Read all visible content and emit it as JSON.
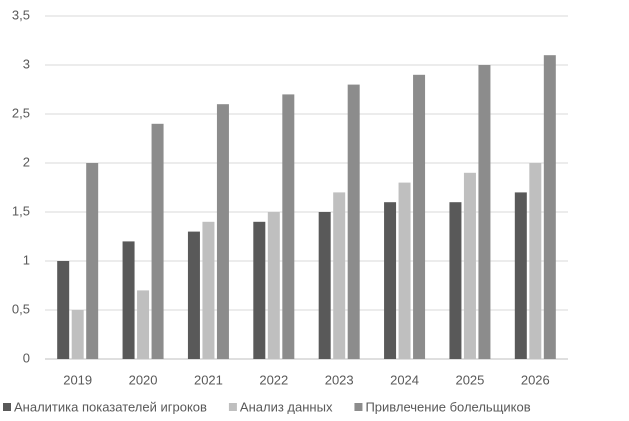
{
  "chart_data": {
    "type": "bar",
    "categories": [
      "2019",
      "2020",
      "2021",
      "2022",
      "2023",
      "2024",
      "2025",
      "2026"
    ],
    "series": [
      {
        "name": "Аналитика показателей игроков",
        "color": "#595959",
        "values": [
          1,
          1.2,
          1.3,
          1.4,
          1.5,
          1.6,
          1.6,
          1.7
        ]
      },
      {
        "name": "Анализ данных",
        "color": "#bfbfbf",
        "values": [
          0.5,
          0.7,
          1.4,
          1.5,
          1.7,
          1.8,
          1.9,
          2
        ]
      },
      {
        "name": "Привлечение болельщиков",
        "color": "#8c8c8c",
        "values": [
          2,
          2.4,
          2.6,
          2.7,
          2.8,
          2.9,
          3,
          3.1
        ]
      }
    ],
    "ylim": [
      0,
      3.5
    ],
    "yticks": [
      0,
      {
        "value": 0.5,
        "label": "0,5"
      },
      1,
      {
        "value": 1.5,
        "label": "1,5"
      },
      2,
      {
        "value": 2.5,
        "label": "2,5"
      },
      3,
      {
        "value": 3.5,
        "label": "3,5"
      }
    ],
    "grid": true,
    "legend": "bottom"
  }
}
